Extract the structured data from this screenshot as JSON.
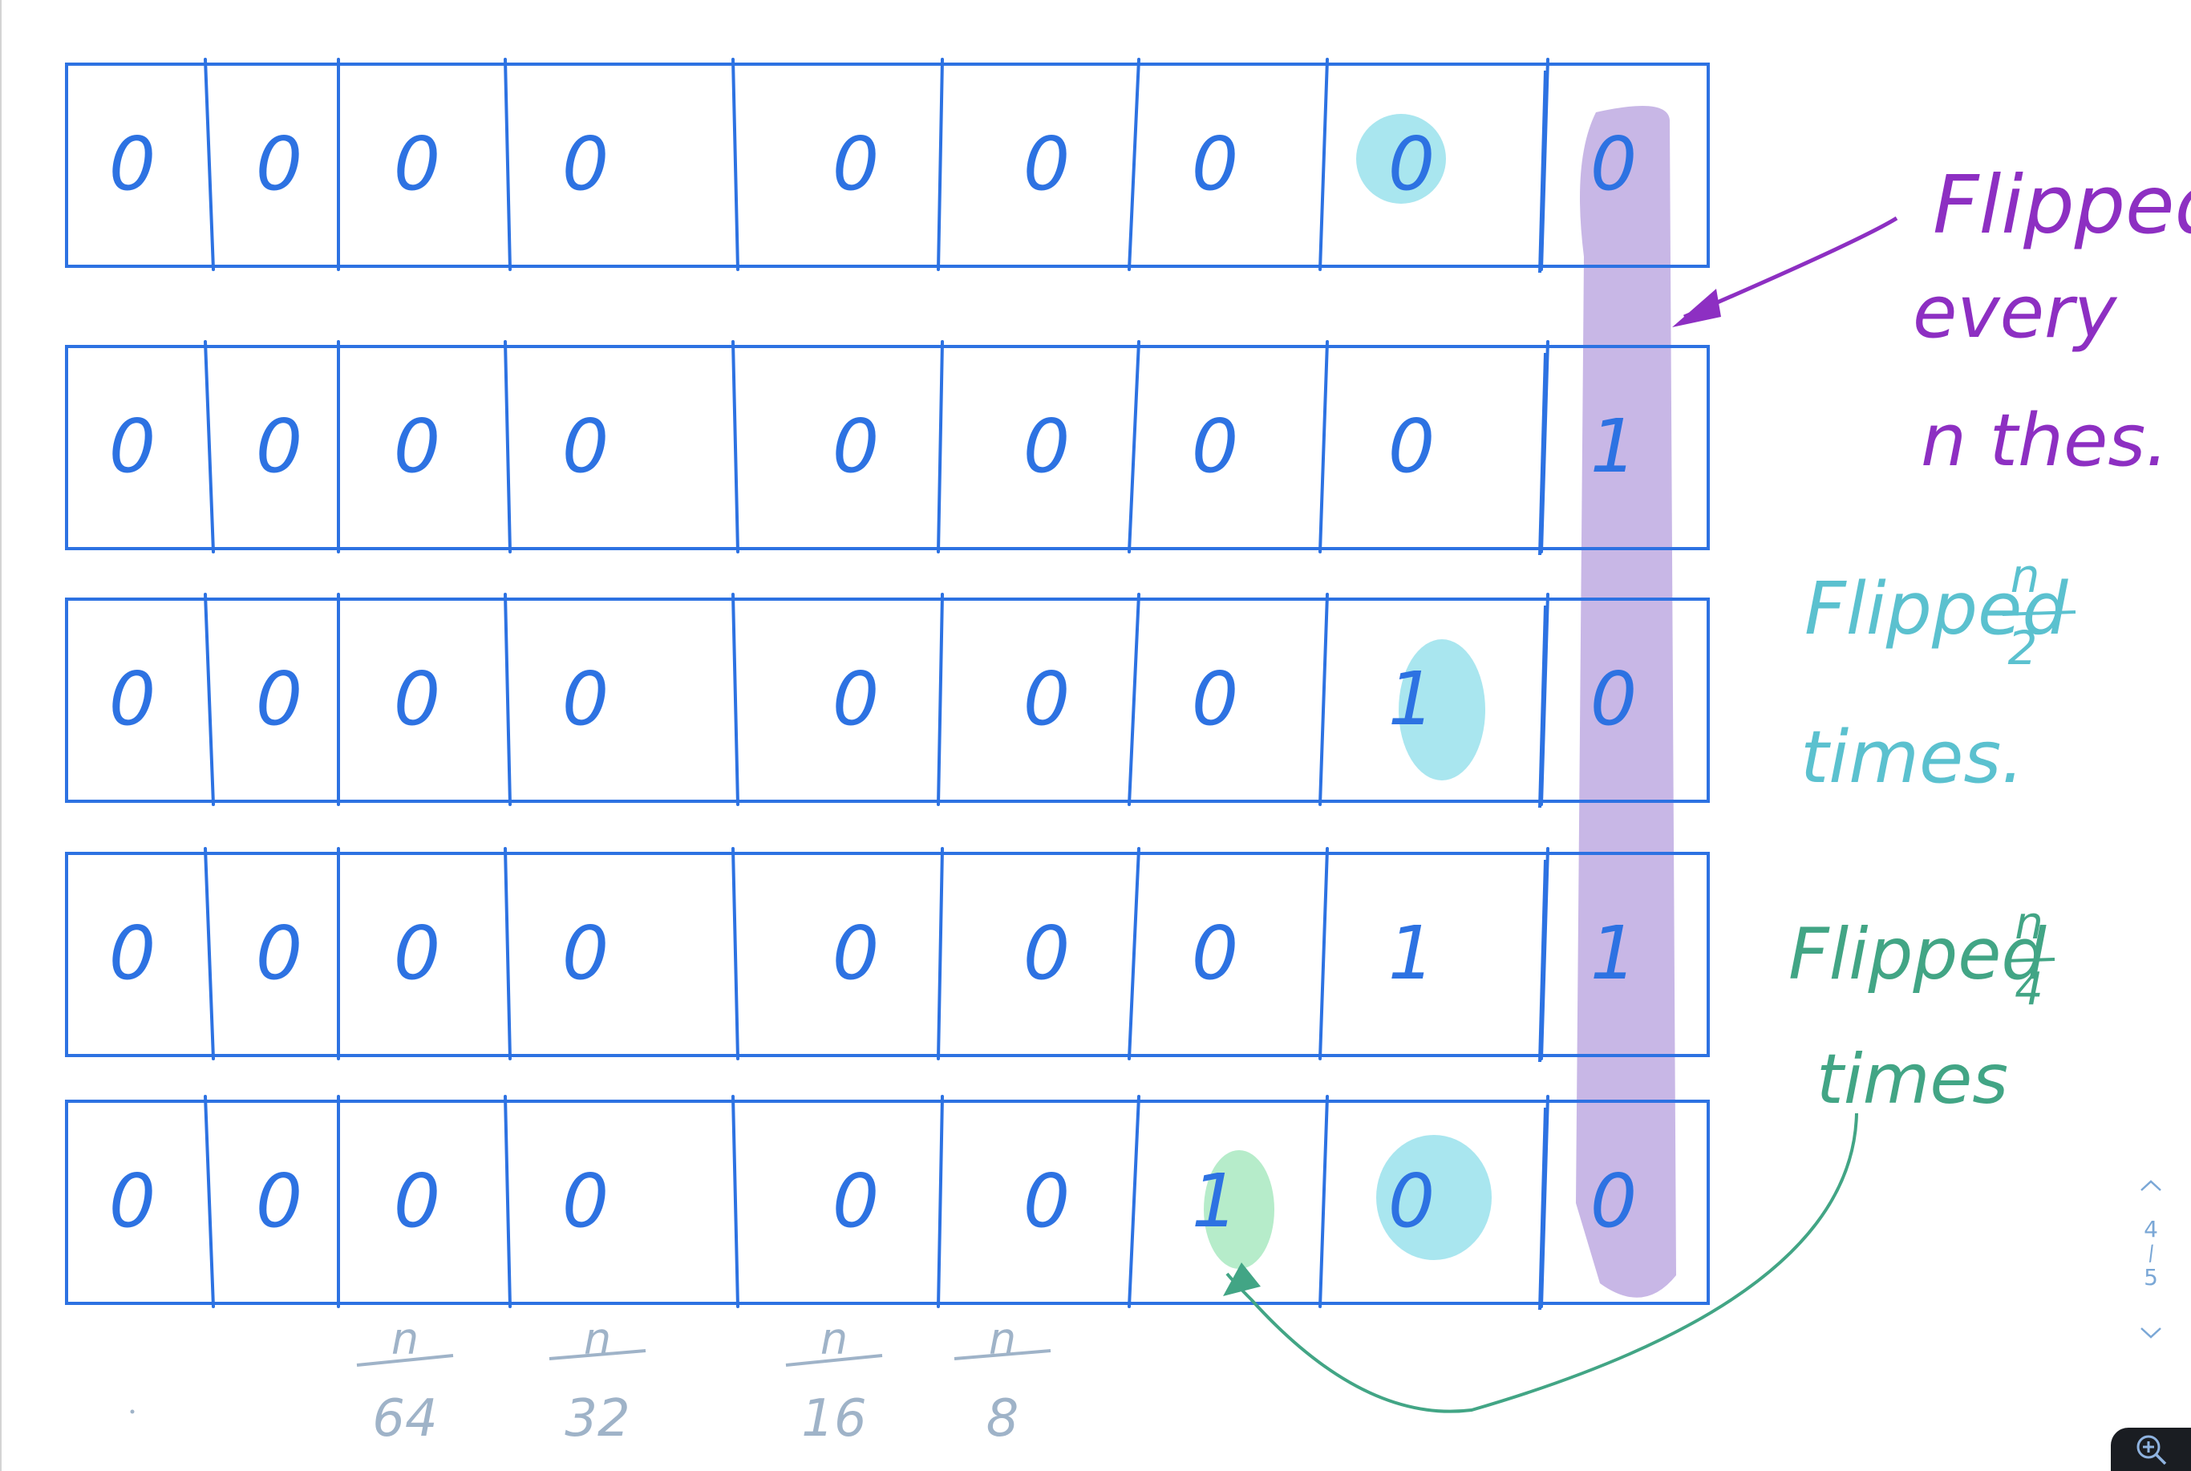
{
  "colors": {
    "ink": "#2d72e2",
    "purple_highlight": "#c8b7e6",
    "purple_ink": "#8d2fc2",
    "cyan_highlight": "#a9e6ef",
    "cyan_ink": "#5bc1cf",
    "green_highlight": "#b6ecca",
    "green_ink": "#42a585",
    "gray_ink": "#9fb3c8"
  },
  "rows": [
    {
      "digits": [
        "0",
        "0",
        "0",
        "0",
        "0",
        "0",
        "0",
        "0",
        "0"
      ],
      "highlight_col": 7,
      "highlight": "cyan"
    },
    {
      "digits": [
        "0",
        "0",
        "0",
        "0",
        "0",
        "0",
        "0",
        "0",
        "1"
      ]
    },
    {
      "digits": [
        "0",
        "0",
        "0",
        "0",
        "0",
        "0",
        "0",
        "1",
        "0"
      ],
      "highlight_col": 7,
      "highlight": "cyan"
    },
    {
      "digits": [
        "0",
        "0",
        "0",
        "0",
        "0",
        "0",
        "0",
        "1",
        "1"
      ]
    },
    {
      "digits": [
        "0",
        "0",
        "0",
        "0",
        "0",
        "0",
        "1",
        "0",
        "0"
      ],
      "highlight_cols": [
        [
          6,
          "green"
        ],
        [
          7,
          "cyan"
        ]
      ]
    }
  ],
  "annotations": {
    "purple": {
      "line1": "Flipped",
      "line2": "every",
      "line3": "n thes."
    },
    "cyan": {
      "text": "Flipped",
      "frac_num": "n",
      "frac_den": "2",
      "line2": "times."
    },
    "green": {
      "text": "Flipped",
      "frac_num": "n",
      "frac_den": "4",
      "line2": "times"
    }
  },
  "bottom_fractions": [
    {
      "num": "n",
      "den": "64"
    },
    {
      "num": "n",
      "den": "32"
    },
    {
      "num": "n",
      "den": "16"
    },
    {
      "num": "n",
      "den": "8"
    }
  ],
  "pager": {
    "current": "4",
    "total": "5",
    "up_icon": "chevron-up-icon",
    "down_icon": "chevron-down-icon"
  },
  "zoom": {
    "icon": "zoom-in-icon"
  }
}
